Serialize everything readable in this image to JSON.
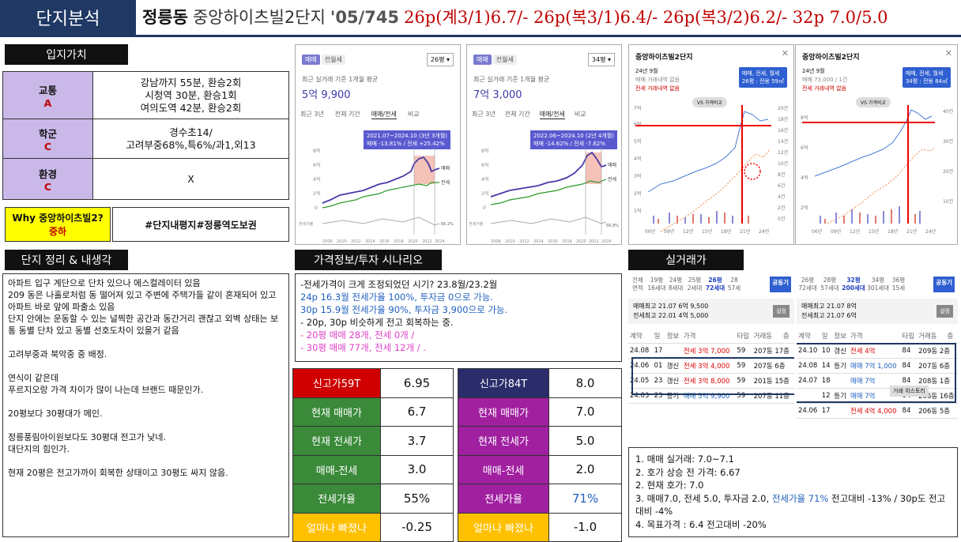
{
  "header": {
    "tag": "단지분석",
    "dong": "정릉동",
    "complex": "중앙하이츠빌2단지",
    "year_units": "'05/745",
    "prices": "26p(계3/1)6.7/- 26p(복3/1)6.4/- 26p(복3/2)6.2/- 32p 7.0/5.0"
  },
  "location": {
    "title": "입지가치",
    "rows": [
      {
        "label": "교통",
        "grade": "A",
        "value": "강남까지 55분, 환승2회\n시청역 30분, 환승1회\n여의도역 42분, 환승2회"
      },
      {
        "label": "학군",
        "grade": "C",
        "value": "경수초14/\n고려부중68%,특6%/과1,외13"
      },
      {
        "label": "환경",
        "grade": "C",
        "value": "X"
      }
    ],
    "why_label": "Why 중앙하이츠빌2?",
    "why_grade": "중하",
    "why_value": "#단지내평지#정릉역도보권"
  },
  "memo": {
    "title": "단지 정리 & 내생각",
    "text": "아파트 입구 계단으로 단차 있으나 에스컬레이터 있음\n209 동은 나홀로처럼 동 떨어져 있고 주변에 주택가들 같이 혼재되어 있고 아파트 바로 앞에 파출소 있음\n단지 안에는 운동할 수 있는 널찍한 공간과 동간거리 괜찮고 외벽 상태는 보통 동별 단차 있고 동별 선호도차이 있을거 같음\n\n고려부중과 북악중 중 배정.\n\n연식이 같은데\n푸르지오랑 가격 차이가 많이 나는데 브랜드 때문인가.\n\n20평보다 30평대가 메인.\n\n정릉풍림아이원보다도 30평대 전고가 낮네.\n대단지의 힘인가.\n\n현재 20평은 전고가까이 회복한 상태이고 30평도 싸지 않음."
  },
  "scenario": {
    "title": "가격정보/투자 시나리오",
    "line1": "-전세가격이 크게 조정되었던 시기? 23.8월/23.2월",
    "line2": "24p 16.3월 전세가율 100%, 투자금 0으로 가능.",
    "line3": "30p 15.9월 전세가율 90%, 투자금 3,900으로 가능.",
    "line4": "- 20p, 30p 비슷하게 전고 회복하는 중.",
    "line5": "-   20평 매매 28개, 전세 0개 /",
    "line6": "-   30평 매매 77개, 전세 12개 / ."
  },
  "metrics": {
    "left": {
      "head": "신고가59T",
      "head_val": "6.95",
      "rows": [
        {
          "label": "현재 매매가",
          "value": "6.7"
        },
        {
          "label": "현재 전세가",
          "value": "3.7"
        },
        {
          "label": "매매-전세",
          "value": "3.0"
        },
        {
          "label": "전세가율",
          "value": "55%"
        },
        {
          "label": "얼마나 빠졌나",
          "value": "-0.25"
        }
      ]
    },
    "right": {
      "head": "신고가84T",
      "head_val": "8.0",
      "rows": [
        {
          "label": "현재 매매가",
          "value": "7.0"
        },
        {
          "label": "현재 전세가",
          "value": "5.0"
        },
        {
          "label": "매매-전세",
          "value": "2.0"
        },
        {
          "label": "전세가율",
          "value": "71%"
        },
        {
          "label": "얼마나 빠졌나",
          "value": "-1.0"
        }
      ]
    }
  },
  "chart1": {
    "tabs": [
      "매매",
      "전월세"
    ],
    "select": "26평",
    "caption": "최근 실거래 기준 1개월 평균",
    "price": "5억 9,900",
    "periods": [
      "최근 3년",
      "전체 기간",
      "매매/전세",
      "비교"
    ],
    "tooltip1": "2021.07~2024.10 (3년 3개월)",
    "tooltip2": "매매 -13.81% / 전세 +25.42%",
    "y": [
      "8억",
      "6억",
      "4억",
      "2억",
      "0"
    ],
    "x": [
      "2008",
      "2010",
      "2012",
      "2014",
      "2016",
      "2018",
      "2020",
      "2022",
      "2024"
    ],
    "leg1": "매매",
    "leg2": "전세",
    "ratio_label": "전세가율",
    "ratio_val": "66.2%"
  },
  "chart2": {
    "tabs": [
      "매매",
      "전월세"
    ],
    "select": "34평",
    "caption": "최근 실거래 기준 1개월 평균",
    "price": "7억 3,000",
    "periods": [
      "최근 3년",
      "전체 기간",
      "매매/전세",
      "비교"
    ],
    "tooltip1": "2022.06~2024.10 (2년 4개월)",
    "tooltip2": "매매 -14.62% / 전세 -7.62%",
    "y": [
      "8억",
      "6억",
      "4억",
      "2억",
      "0"
    ],
    "x": [
      "2008",
      "2010",
      "2012",
      "2014",
      "2016",
      "2018",
      "2020",
      "2022",
      "2024"
    ],
    "leg1": "매매",
    "leg2": "전세",
    "ratio_label": "전세가율",
    "ratio_val": "66.8%"
  },
  "chart3": {
    "title": "중앙하이츠빌2단지",
    "month": "24년 9월",
    "line1": "매매 거래내역 없음",
    "line2": "전세 거래내역 없음",
    "badge": "매매, 전세, 월세",
    "badge2": "26평 : 전용 59㎡",
    "vs": "VS 가격비교",
    "yl": [
      "7억",
      "6억",
      "5억",
      "4억",
      "3억",
      "2억",
      "1억"
    ],
    "yr": [
      "20건",
      "18건",
      "16건",
      "14건",
      "12건",
      "10건",
      "8건",
      "6건",
      "4건",
      "2건",
      "0건"
    ],
    "x": [
      "06년",
      "09년",
      "12년",
      "15년",
      "18년",
      "21년",
      "24년"
    ]
  },
  "chart4": {
    "title": "중앙하이츠빌2단지",
    "month": "24년 9월",
    "line1": "매매 73,000 / 1건",
    "line2": "전세 거래내역 없음",
    "badge": "매매, 전세, 월세",
    "badge2": "34평 : 전용 84㎡",
    "vs": "VS 가격비교",
    "yl": [
      "8억",
      "6억",
      "4억",
      "2억"
    ],
    "yr": [
      "40건",
      "30건",
      "20건",
      "10건"
    ],
    "x": [
      "06년",
      "09년",
      "12년",
      "15년",
      "18년",
      "21년",
      "24년"
    ]
  },
  "deals": {
    "title": "실거래가",
    "left": {
      "tabs": [
        {
          "a": "전체",
          "b": "면적"
        },
        {
          "a": "19평",
          "b": "16세대"
        },
        {
          "a": "24평",
          "b": "8세대"
        },
        {
          "a": "25평",
          "b": "2세대"
        },
        {
          "a": "26평",
          "b": "72세대"
        },
        {
          "a": "28",
          "b": "57세"
        }
      ],
      "btn": "공동기",
      "hi1": "매매최고 21.07 6억 9,500",
      "hi2": "전세최고 22.01 4억 5,000",
      "setbtn": "설정",
      "cols": [
        "계약",
        "일",
        "정보",
        "가격",
        "타입",
        "거래동",
        "층"
      ],
      "rows": [
        [
          "24.08",
          "17",
          "",
          "전세 3억 7,000",
          "59",
          "207동 17층"
        ],
        [
          "24.06",
          "01",
          "갱신",
          "전세 3억 4,000",
          "59",
          "207동 6층"
        ],
        [
          "24.05",
          "23",
          "갱신",
          "전세 3억 8,000",
          "59",
          "201동 15층"
        ],
        [
          "24.03",
          "23",
          "등기",
          "매매 5억 9,900",
          "59",
          "207동 11층"
        ]
      ]
    },
    "right": {
      "tabs": [
        {
          "a": "26평",
          "b": "72세대"
        },
        {
          "a": "28평",
          "b": "57세대"
        },
        {
          "a": "32평",
          "b": "200세대"
        },
        {
          "a": "34평",
          "b": "301세대"
        },
        {
          "a": "36평",
          "b": "15세"
        }
      ],
      "btn": "공동기",
      "hi1": "매매최고 21.07 8억",
      "hi2": "전세최고 21.07 6억",
      "setbtn": "설정",
      "cols": [
        "계약",
        "일",
        "정보",
        "가격",
        "타입",
        "거래동",
        "층"
      ],
      "rows": [
        [
          "24.10",
          "10",
          "갱신",
          "전세 4억",
          "84",
          "209동 2층"
        ],
        [
          "24.08",
          "14",
          "등기",
          "매매 7억 1,000",
          "84",
          "207동 6층"
        ],
        [
          "24.07",
          "18",
          "",
          "매매 7억",
          "84",
          "208동 1층"
        ],
        [
          "",
          "12",
          "등기",
          "매매 7억",
          "84",
          "206동 16층"
        ],
        [
          "24.06",
          "17",
          "",
          "전세 4억 4,000",
          "84",
          "206동 5층"
        ]
      ],
      "hover": "거래 히스토리"
    }
  },
  "summary": {
    "l1": "1. 매매 실거래: 7.0~7.1",
    "l2": "2. 호가 상승 전 가격: 6.67",
    "l3": "2. 현재 호가: 7.0",
    "l4a": "3. 매매7.0, 전세 5.0, 투자금 2.0,",
    "l4b": "전세가율 71%",
    "l4c": "전고대비 -13% / 30p도 전고대비 -4%",
    "l5": "4. 목표가격 : 6.4 전고대비 -20%"
  }
}
